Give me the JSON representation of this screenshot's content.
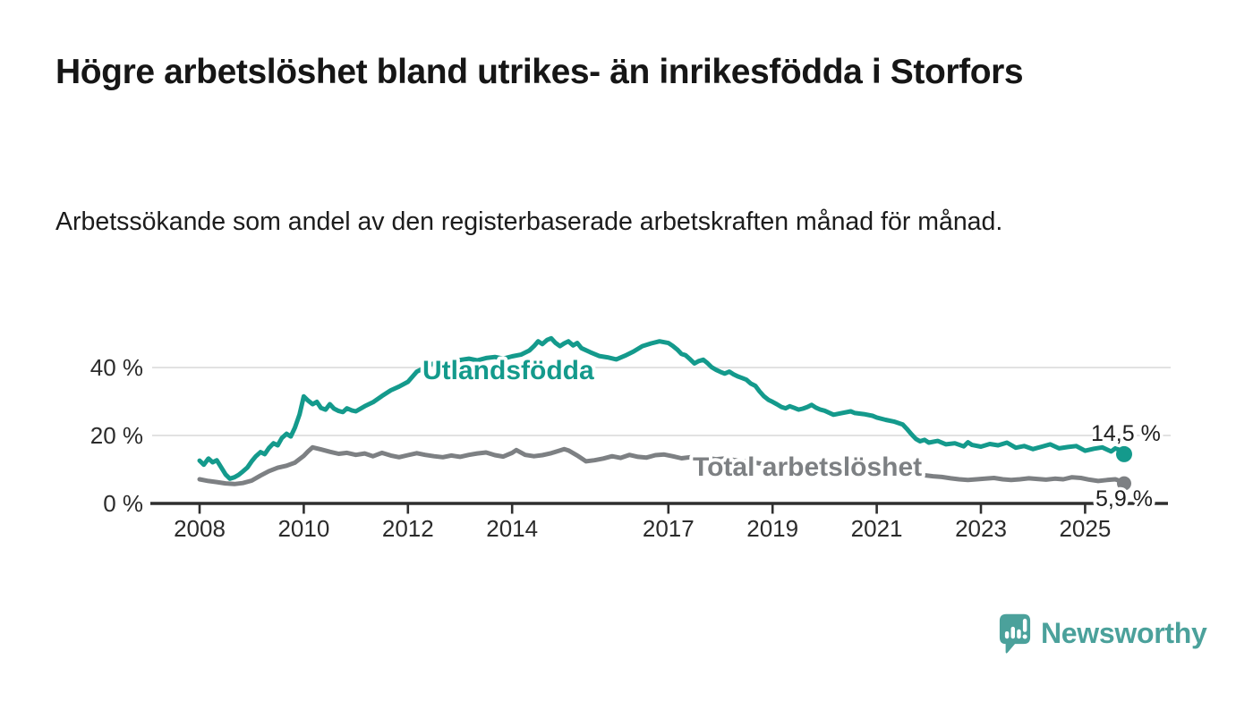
{
  "header": {
    "title": "Högre arbetslöshet bland utrikes- än inrikesfödda i Storfors",
    "subtitle": "Arbetssökande som andel av den registerbaserade arbetskraften månad för månad."
  },
  "chart_data": {
    "type": "line",
    "title": "Högre arbetslöshet bland utrikes- än inrikesfödda i Storfors",
    "subtitle": "Arbetssökande som andel av den registerbaserade arbetskraften månad för månad.",
    "xlabel": "",
    "ylabel": "",
    "unit": "%",
    "xlim": [
      2007.1,
      2026.6
    ],
    "ylim": [
      0,
      54
    ],
    "grid": "horizontal",
    "legend_position": "inline-labels",
    "x_tick_years": [
      2008,
      2010,
      2012,
      2014,
      2017,
      2019,
      2021,
      2023,
      2025
    ],
    "y_tick_values": [
      0,
      20,
      40
    ],
    "y_tick_labels": [
      "0 %",
      "20 %",
      "40 %"
    ],
    "series": [
      {
        "name": "Utlandsfödda",
        "color": "#149a8c",
        "end_label": "14,5 %",
        "end_value": 14.5,
        "points": [
          [
            2008.0,
            12.6
          ],
          [
            2008.08,
            11.4
          ],
          [
            2008.17,
            13.2
          ],
          [
            2008.25,
            12.1
          ],
          [
            2008.33,
            12.7
          ],
          [
            2008.42,
            10.5
          ],
          [
            2008.5,
            8.5
          ],
          [
            2008.58,
            7.3
          ],
          [
            2008.67,
            7.7
          ],
          [
            2008.75,
            8.4
          ],
          [
            2008.83,
            9.4
          ],
          [
            2008.92,
            10.6
          ],
          [
            2009.0,
            12.4
          ],
          [
            2009.08,
            13.9
          ],
          [
            2009.17,
            15.1
          ],
          [
            2009.25,
            14.5
          ],
          [
            2009.33,
            16.3
          ],
          [
            2009.42,
            17.7
          ],
          [
            2009.5,
            17.1
          ],
          [
            2009.58,
            19.3
          ],
          [
            2009.67,
            20.5
          ],
          [
            2009.75,
            19.7
          ],
          [
            2009.83,
            22.3
          ],
          [
            2009.92,
            26.2
          ],
          [
            2010.0,
            31.5
          ],
          [
            2010.08,
            30.3
          ],
          [
            2010.17,
            29.2
          ],
          [
            2010.25,
            29.9
          ],
          [
            2010.33,
            28.1
          ],
          [
            2010.42,
            27.6
          ],
          [
            2010.5,
            29.2
          ],
          [
            2010.58,
            27.9
          ],
          [
            2010.67,
            27.2
          ],
          [
            2010.75,
            26.9
          ],
          [
            2010.83,
            28.0
          ],
          [
            2010.92,
            27.4
          ],
          [
            2011.0,
            27.1
          ],
          [
            2011.17,
            28.6
          ],
          [
            2011.33,
            29.8
          ],
          [
            2011.5,
            31.6
          ],
          [
            2011.67,
            33.3
          ],
          [
            2011.83,
            34.4
          ],
          [
            2012.0,
            35.8
          ],
          [
            2012.08,
            37.2
          ],
          [
            2012.17,
            38.8
          ],
          [
            2012.25,
            39.4
          ],
          [
            2012.33,
            40.3
          ],
          [
            2012.5,
            41.2
          ],
          [
            2012.67,
            40.8
          ],
          [
            2012.83,
            41.8
          ],
          [
            2013.0,
            42.2
          ],
          [
            2013.17,
            42.6
          ],
          [
            2013.33,
            42.1
          ],
          [
            2013.5,
            42.8
          ],
          [
            2013.67,
            43.1
          ],
          [
            2013.83,
            42.6
          ],
          [
            2014.0,
            43.3
          ],
          [
            2014.17,
            43.8
          ],
          [
            2014.33,
            45.0
          ],
          [
            2014.42,
            46.3
          ],
          [
            2014.5,
            47.7
          ],
          [
            2014.58,
            46.9
          ],
          [
            2014.67,
            48.1
          ],
          [
            2014.75,
            48.6
          ],
          [
            2014.83,
            47.3
          ],
          [
            2014.92,
            46.3
          ],
          [
            2015.0,
            47.1
          ],
          [
            2015.08,
            47.7
          ],
          [
            2015.17,
            46.5
          ],
          [
            2015.25,
            47.2
          ],
          [
            2015.33,
            45.7
          ],
          [
            2015.5,
            44.5
          ],
          [
            2015.67,
            43.4
          ],
          [
            2015.83,
            43.0
          ],
          [
            2016.0,
            42.4
          ],
          [
            2016.17,
            43.5
          ],
          [
            2016.33,
            44.7
          ],
          [
            2016.5,
            46.3
          ],
          [
            2016.67,
            47.1
          ],
          [
            2016.83,
            47.7
          ],
          [
            2017.0,
            47.2
          ],
          [
            2017.08,
            46.4
          ],
          [
            2017.17,
            45.3
          ],
          [
            2017.25,
            44.0
          ],
          [
            2017.33,
            43.6
          ],
          [
            2017.42,
            42.4
          ],
          [
            2017.5,
            41.2
          ],
          [
            2017.58,
            41.9
          ],
          [
            2017.67,
            42.3
          ],
          [
            2017.75,
            41.3
          ],
          [
            2017.83,
            40.1
          ],
          [
            2017.92,
            39.3
          ],
          [
            2018.0,
            38.7
          ],
          [
            2018.08,
            38.2
          ],
          [
            2018.17,
            38.8
          ],
          [
            2018.25,
            38.0
          ],
          [
            2018.33,
            37.4
          ],
          [
            2018.42,
            36.9
          ],
          [
            2018.5,
            36.4
          ],
          [
            2018.58,
            35.3
          ],
          [
            2018.67,
            34.6
          ],
          [
            2018.75,
            33.0
          ],
          [
            2018.83,
            31.6
          ],
          [
            2018.92,
            30.5
          ],
          [
            2019.0,
            29.9
          ],
          [
            2019.08,
            29.2
          ],
          [
            2019.17,
            28.4
          ],
          [
            2019.25,
            28.0
          ],
          [
            2019.33,
            28.6
          ],
          [
            2019.42,
            28.1
          ],
          [
            2019.5,
            27.6
          ],
          [
            2019.58,
            27.9
          ],
          [
            2019.67,
            28.4
          ],
          [
            2019.75,
            29.0
          ],
          [
            2019.83,
            28.2
          ],
          [
            2019.92,
            27.6
          ],
          [
            2020.0,
            27.3
          ],
          [
            2020.17,
            26.1
          ],
          [
            2020.33,
            26.6
          ],
          [
            2020.5,
            27.1
          ],
          [
            2020.58,
            26.6
          ],
          [
            2020.75,
            26.3
          ],
          [
            2020.92,
            25.8
          ],
          [
            2021.0,
            25.3
          ],
          [
            2021.17,
            24.6
          ],
          [
            2021.33,
            24.1
          ],
          [
            2021.5,
            23.2
          ],
          [
            2021.58,
            21.9
          ],
          [
            2021.67,
            20.3
          ],
          [
            2021.75,
            19.0
          ],
          [
            2021.83,
            18.3
          ],
          [
            2021.92,
            18.7
          ],
          [
            2022.0,
            17.9
          ],
          [
            2022.17,
            18.4
          ],
          [
            2022.33,
            17.4
          ],
          [
            2022.5,
            17.7
          ],
          [
            2022.67,
            16.8
          ],
          [
            2022.75,
            18.0
          ],
          [
            2022.83,
            17.2
          ],
          [
            2023.0,
            16.7
          ],
          [
            2023.17,
            17.5
          ],
          [
            2023.33,
            17.1
          ],
          [
            2023.5,
            17.9
          ],
          [
            2023.67,
            16.4
          ],
          [
            2023.83,
            16.9
          ],
          [
            2024.0,
            16.0
          ],
          [
            2024.17,
            16.7
          ],
          [
            2024.33,
            17.4
          ],
          [
            2024.5,
            16.2
          ],
          [
            2024.67,
            16.6
          ],
          [
            2024.83,
            16.9
          ],
          [
            2025.0,
            15.5
          ],
          [
            2025.17,
            16.1
          ],
          [
            2025.33,
            16.5
          ],
          [
            2025.5,
            15.3
          ],
          [
            2025.58,
            16.2
          ],
          [
            2025.67,
            15.7
          ],
          [
            2025.75,
            14.5
          ]
        ]
      },
      {
        "name": "Total arbetslöshet",
        "color": "#7d8083",
        "end_label": "5,9 %",
        "end_value": 5.9,
        "points": [
          [
            2008.0,
            7.1
          ],
          [
            2008.17,
            6.6
          ],
          [
            2008.33,
            6.3
          ],
          [
            2008.5,
            5.9
          ],
          [
            2008.67,
            5.7
          ],
          [
            2008.83,
            6.0
          ],
          [
            2009.0,
            6.7
          ],
          [
            2009.17,
            8.2
          ],
          [
            2009.33,
            9.5
          ],
          [
            2009.5,
            10.5
          ],
          [
            2009.67,
            11.1
          ],
          [
            2009.83,
            12.0
          ],
          [
            2010.0,
            14.0
          ],
          [
            2010.08,
            15.3
          ],
          [
            2010.17,
            16.5
          ],
          [
            2010.33,
            15.9
          ],
          [
            2010.5,
            15.2
          ],
          [
            2010.67,
            14.6
          ],
          [
            2010.83,
            14.9
          ],
          [
            2011.0,
            14.3
          ],
          [
            2011.17,
            14.7
          ],
          [
            2011.33,
            13.9
          ],
          [
            2011.5,
            14.9
          ],
          [
            2011.67,
            14.1
          ],
          [
            2011.83,
            13.6
          ],
          [
            2012.0,
            14.2
          ],
          [
            2012.17,
            14.8
          ],
          [
            2012.33,
            14.3
          ],
          [
            2012.5,
            13.9
          ],
          [
            2012.67,
            13.6
          ],
          [
            2012.83,
            14.1
          ],
          [
            2013.0,
            13.7
          ],
          [
            2013.17,
            14.3
          ],
          [
            2013.33,
            14.7
          ],
          [
            2013.5,
            15.0
          ],
          [
            2013.67,
            14.2
          ],
          [
            2013.83,
            13.8
          ],
          [
            2014.0,
            14.9
          ],
          [
            2014.08,
            15.7
          ],
          [
            2014.25,
            14.3
          ],
          [
            2014.42,
            13.9
          ],
          [
            2014.58,
            14.2
          ],
          [
            2014.75,
            14.8
          ],
          [
            2014.92,
            15.6
          ],
          [
            2015.0,
            16.0
          ],
          [
            2015.08,
            15.6
          ],
          [
            2015.25,
            14.1
          ],
          [
            2015.42,
            12.4
          ],
          [
            2015.58,
            12.7
          ],
          [
            2015.75,
            13.2
          ],
          [
            2015.92,
            13.9
          ],
          [
            2016.08,
            13.4
          ],
          [
            2016.25,
            14.3
          ],
          [
            2016.42,
            13.7
          ],
          [
            2016.58,
            13.5
          ],
          [
            2016.75,
            14.2
          ],
          [
            2016.92,
            14.4
          ],
          [
            2017.08,
            13.9
          ],
          [
            2017.25,
            13.3
          ],
          [
            2017.42,
            13.6
          ],
          [
            2017.58,
            13.1
          ],
          [
            2017.75,
            13.3
          ],
          [
            2017.92,
            13.0
          ],
          [
            2018.08,
            13.2
          ],
          [
            2018.25,
            12.8
          ],
          [
            2018.42,
            12.5
          ],
          [
            2018.58,
            12.2
          ],
          [
            2018.75,
            11.8
          ],
          [
            2018.92,
            11.4
          ],
          [
            2019.08,
            11.2
          ],
          [
            2019.25,
            11.0
          ],
          [
            2019.42,
            11.3
          ],
          [
            2019.58,
            11.2
          ],
          [
            2019.75,
            11.4
          ],
          [
            2019.92,
            11.1
          ],
          [
            2020.08,
            11.6
          ],
          [
            2020.25,
            12.1
          ],
          [
            2020.42,
            12.3
          ],
          [
            2020.58,
            11.9
          ],
          [
            2020.75,
            11.6
          ],
          [
            2020.92,
            11.1
          ],
          [
            2021.08,
            10.6
          ],
          [
            2021.25,
            10.1
          ],
          [
            2021.42,
            9.6
          ],
          [
            2021.58,
            9.1
          ],
          [
            2021.75,
            8.7
          ],
          [
            2021.92,
            8.3
          ],
          [
            2022.08,
            8.0
          ],
          [
            2022.25,
            7.8
          ],
          [
            2022.42,
            7.4
          ],
          [
            2022.58,
            7.1
          ],
          [
            2022.75,
            6.9
          ],
          [
            2022.92,
            7.1
          ],
          [
            2023.08,
            7.3
          ],
          [
            2023.25,
            7.5
          ],
          [
            2023.42,
            7.1
          ],
          [
            2023.58,
            6.9
          ],
          [
            2023.75,
            7.1
          ],
          [
            2023.92,
            7.4
          ],
          [
            2024.08,
            7.2
          ],
          [
            2024.25,
            7.0
          ],
          [
            2024.42,
            7.3
          ],
          [
            2024.58,
            7.1
          ],
          [
            2024.75,
            7.7
          ],
          [
            2024.92,
            7.5
          ],
          [
            2025.08,
            7.0
          ],
          [
            2025.25,
            6.6
          ],
          [
            2025.42,
            6.9
          ],
          [
            2025.58,
            7.1
          ],
          [
            2025.67,
            6.6
          ],
          [
            2025.75,
            5.9
          ]
        ]
      }
    ],
    "colors": {
      "accent_teal": "#149a8c",
      "line_gray": "#7d8083",
      "grid": "#d9d9d9",
      "axis": "#2f2f2f",
      "logo_teal": "#4ba19b"
    }
  },
  "footer": {
    "brand": "Newsworthy"
  }
}
